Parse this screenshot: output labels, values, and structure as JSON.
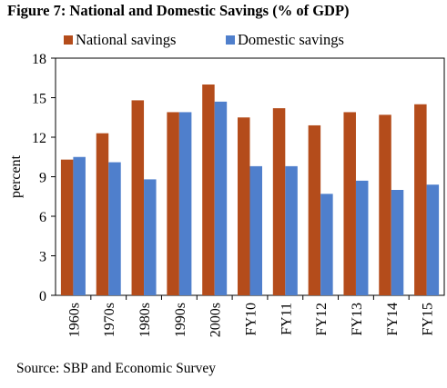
{
  "chart_data": {
    "type": "bar",
    "title": "Figure 7: National and Domestic Savings (% of GDP)",
    "ylabel": "percent",
    "xlabel": "",
    "ylim": [
      0,
      18
    ],
    "yticks": [
      0,
      3,
      6,
      9,
      12,
      15,
      18
    ],
    "grid": false,
    "legend_position": "top",
    "categories": [
      "1960s",
      "1970s",
      "1980s",
      "1990s",
      "2000s",
      "FY10",
      "FY11",
      "FY12",
      "FY13",
      "FY14",
      "FY15"
    ],
    "series": [
      {
        "name": "National savings",
        "color": "#b44c1b",
        "values": [
          10.3,
          12.3,
          14.8,
          13.9,
          16.0,
          13.5,
          14.2,
          12.9,
          13.9,
          13.7,
          14.5
        ]
      },
      {
        "name": "Domestic savings",
        "color": "#4f7fcc",
        "values": [
          10.5,
          10.1,
          8.8,
          13.9,
          14.7,
          9.8,
          9.8,
          7.7,
          8.7,
          8.0,
          8.4
        ]
      }
    ],
    "source": "Source: SBP and Economic Survey"
  }
}
